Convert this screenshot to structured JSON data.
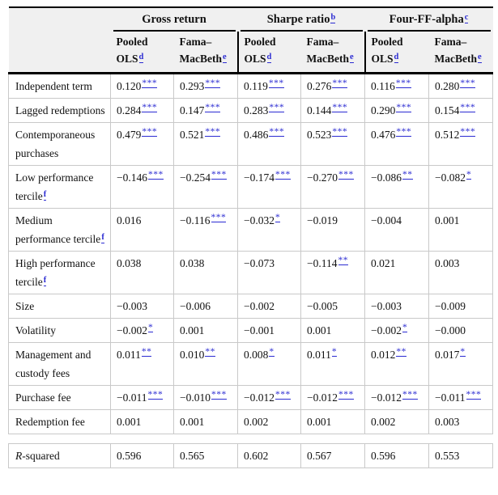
{
  "colors": {
    "link_blue": "#2b2bd2",
    "header_bg": "#f0f0f0",
    "rule_black": "#000000",
    "grid_gray": "#c9c9c9"
  },
  "header": {
    "corner": "",
    "groups": [
      {
        "label": "Gross return",
        "sup": ""
      },
      {
        "label": "Sharpe ratio",
        "sup": "b"
      },
      {
        "label": "Four-FF-alpha",
        "sup": "c"
      }
    ],
    "subcolumns": [
      {
        "lines": [
          "Pooled",
          "OLS"
        ],
        "sup": "d"
      },
      {
        "lines": [
          "Fama–",
          "MacBeth"
        ],
        "sup": "e"
      },
      {
        "lines": [
          "Pooled",
          "OLS"
        ],
        "sup": "d"
      },
      {
        "lines": [
          "Fama–",
          "MacBeth"
        ],
        "sup": "e"
      },
      {
        "lines": [
          "Pooled",
          "OLS"
        ],
        "sup": "d"
      },
      {
        "lines": [
          "Fama–",
          "MacBeth"
        ],
        "sup": "e"
      }
    ]
  },
  "body": [
    {
      "label": "Independent term",
      "sup": "",
      "cells": [
        {
          "v": "0.120",
          "s": "***"
        },
        {
          "v": "0.293",
          "s": "***"
        },
        {
          "v": "0.119",
          "s": "***"
        },
        {
          "v": "0.276",
          "s": "***"
        },
        {
          "v": "0.116",
          "s": "***"
        },
        {
          "v": "0.280",
          "s": "***"
        }
      ]
    },
    {
      "label": "Lagged redemptions",
      "sup": "",
      "cells": [
        {
          "v": "0.284",
          "s": "***"
        },
        {
          "v": "0.147",
          "s": "***"
        },
        {
          "v": "0.283",
          "s": "***"
        },
        {
          "v": "0.144",
          "s": "***"
        },
        {
          "v": "0.290",
          "s": "***"
        },
        {
          "v": "0.154",
          "s": "***"
        }
      ]
    },
    {
      "label": "Contemporaneous purchases",
      "sup": "",
      "cells": [
        {
          "v": "0.479",
          "s": "***"
        },
        {
          "v": "0.521",
          "s": "***"
        },
        {
          "v": "0.486",
          "s": "***"
        },
        {
          "v": "0.523",
          "s": "***"
        },
        {
          "v": "0.476",
          "s": "***"
        },
        {
          "v": "0.512",
          "s": "***"
        }
      ]
    },
    {
      "label": "Low performance tercile",
      "sup": "f",
      "cells": [
        {
          "v": "−0.146",
          "s": "***"
        },
        {
          "v": "−0.254",
          "s": "***"
        },
        {
          "v": "−0.174",
          "s": "***"
        },
        {
          "v": "−0.270",
          "s": "***"
        },
        {
          "v": "−0.086",
          "s": "**"
        },
        {
          "v": "−0.082",
          "s": "*"
        }
      ]
    },
    {
      "label": "Medium performance tercile",
      "sup": "f",
      "cells": [
        {
          "v": "0.016",
          "s": ""
        },
        {
          "v": "−0.116",
          "s": "***"
        },
        {
          "v": "−0.032",
          "s": "*"
        },
        {
          "v": "−0.019",
          "s": ""
        },
        {
          "v": "−0.004",
          "s": ""
        },
        {
          "v": "0.001",
          "s": ""
        }
      ]
    },
    {
      "label": "High performance tercile",
      "sup": "f",
      "cells": [
        {
          "v": "0.038",
          "s": ""
        },
        {
          "v": "0.038",
          "s": ""
        },
        {
          "v": "−0.073",
          "s": ""
        },
        {
          "v": "−0.114",
          "s": "**"
        },
        {
          "v": "0.021",
          "s": ""
        },
        {
          "v": "0.003",
          "s": ""
        }
      ]
    },
    {
      "label": "Size",
      "sup": "",
      "cells": [
        {
          "v": "−0.003",
          "s": ""
        },
        {
          "v": "−0.006",
          "s": ""
        },
        {
          "v": "−0.002",
          "s": ""
        },
        {
          "v": "−0.005",
          "s": ""
        },
        {
          "v": "−0.003",
          "s": ""
        },
        {
          "v": "−0.009",
          "s": ""
        }
      ]
    },
    {
      "label": "Volatility",
      "sup": "",
      "cells": [
        {
          "v": "−0.002",
          "s": "*"
        },
        {
          "v": "0.001",
          "s": ""
        },
        {
          "v": "−0.001",
          "s": ""
        },
        {
          "v": "0.001",
          "s": ""
        },
        {
          "v": "−0.002",
          "s": "*"
        },
        {
          "v": "−0.000",
          "s": ""
        }
      ]
    },
    {
      "label": "Management and custody fees",
      "sup": "",
      "cells": [
        {
          "v": "0.011",
          "s": "**"
        },
        {
          "v": "0.010",
          "s": "**"
        },
        {
          "v": "0.008",
          "s": "*"
        },
        {
          "v": "0.011",
          "s": "*"
        },
        {
          "v": "0.012",
          "s": "**"
        },
        {
          "v": "0.017",
          "s": "*"
        }
      ]
    },
    {
      "label": "Purchase fee",
      "sup": "",
      "cells": [
        {
          "v": "−0.011",
          "s": "***"
        },
        {
          "v": "−0.010",
          "s": "***"
        },
        {
          "v": "−0.012",
          "s": "***"
        },
        {
          "v": "−0.012",
          "s": "***"
        },
        {
          "v": "−0.012",
          "s": "***"
        },
        {
          "v": "−0.011",
          "s": "***"
        }
      ]
    },
    {
      "label": "Redemption fee",
      "sup": "",
      "cells": [
        {
          "v": "0.001",
          "s": ""
        },
        {
          "v": "0.001",
          "s": ""
        },
        {
          "v": "0.002",
          "s": ""
        },
        {
          "v": "0.001",
          "s": ""
        },
        {
          "v": "0.002",
          "s": ""
        },
        {
          "v": "0.003",
          "s": ""
        }
      ]
    }
  ],
  "stats": [
    {
      "label_italic": "R",
      "label": "-squared",
      "sup": "",
      "cells": [
        {
          "v": "0.596",
          "s": ""
        },
        {
          "v": "0.565",
          "s": ""
        },
        {
          "v": "0.602",
          "s": ""
        },
        {
          "v": "0.567",
          "s": ""
        },
        {
          "v": "0.596",
          "s": ""
        },
        {
          "v": "0.553",
          "s": ""
        }
      ]
    }
  ]
}
